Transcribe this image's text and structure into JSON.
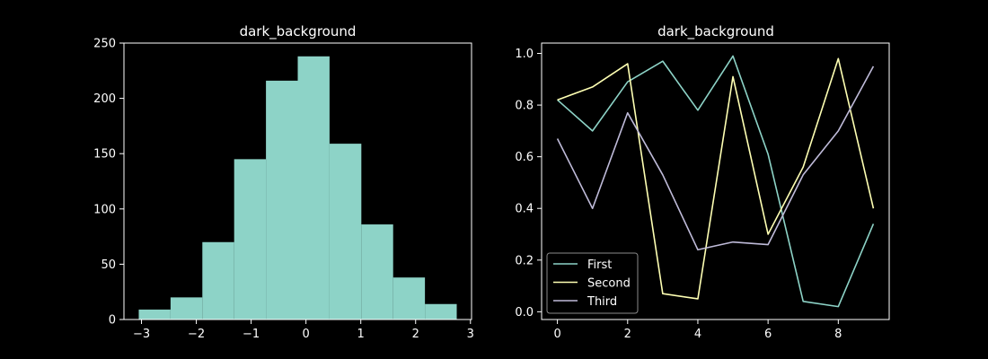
{
  "chart_data": [
    {
      "type": "bar",
      "title": "dark_background",
      "xlabel": "",
      "ylabel": "",
      "bins": [
        {
          "x0": -3.05,
          "x1": -2.47,
          "count": 9
        },
        {
          "x0": -2.47,
          "x1": -1.89,
          "count": 20
        },
        {
          "x0": -1.89,
          "x1": -1.31,
          "count": 70
        },
        {
          "x0": -1.31,
          "x1": -0.73,
          "count": 145
        },
        {
          "x0": -0.73,
          "x1": -0.15,
          "count": 216
        },
        {
          "x0": -0.15,
          "x1": 0.43,
          "count": 238
        },
        {
          "x0": 0.43,
          "x1": 1.01,
          "count": 159
        },
        {
          "x0": 1.01,
          "x1": 1.59,
          "count": 86
        },
        {
          "x0": 1.59,
          "x1": 2.17,
          "count": 38
        },
        {
          "x0": 2.17,
          "x1": 2.75,
          "count": 14
        }
      ],
      "xlim": [
        -3.32,
        3.02
      ],
      "ylim": [
        0,
        250
      ],
      "xticks": [
        -3,
        -2,
        -1,
        0,
        1,
        2,
        3
      ],
      "yticks": [
        0,
        50,
        100,
        150,
        200,
        250
      ],
      "color": "#8dd3c7"
    },
    {
      "type": "line",
      "title": "dark_background",
      "xlabel": "",
      "ylabel": "",
      "x": [
        0,
        1,
        2,
        3,
        4,
        5,
        6,
        7,
        8,
        9
      ],
      "series": [
        {
          "name": "First",
          "color": "#8dd3c7",
          "values": [
            0.82,
            0.7,
            0.89,
            0.97,
            0.78,
            0.99,
            0.61,
            0.04,
            0.02,
            0.34
          ]
        },
        {
          "name": "Second",
          "color": "#feffb3",
          "values": [
            0.82,
            0.87,
            0.96,
            0.07,
            0.05,
            0.91,
            0.3,
            0.56,
            0.98,
            0.4
          ]
        },
        {
          "name": "Third",
          "color": "#bfbbd9",
          "values": [
            0.67,
            0.4,
            0.77,
            0.53,
            0.24,
            0.27,
            0.26,
            0.53,
            0.7,
            0.95
          ]
        }
      ],
      "xlim": [
        -0.45,
        9.45
      ],
      "ylim": [
        -0.03,
        1.04
      ],
      "xticks": [
        0,
        2,
        4,
        6,
        8
      ],
      "yticks": [
        0.0,
        0.2,
        0.4,
        0.6,
        0.8,
        1.0
      ],
      "ytick_labels": [
        "0.0",
        "0.2",
        "0.4",
        "0.6",
        "0.8",
        "1.0"
      ],
      "legend_position": "lower-left"
    }
  ]
}
